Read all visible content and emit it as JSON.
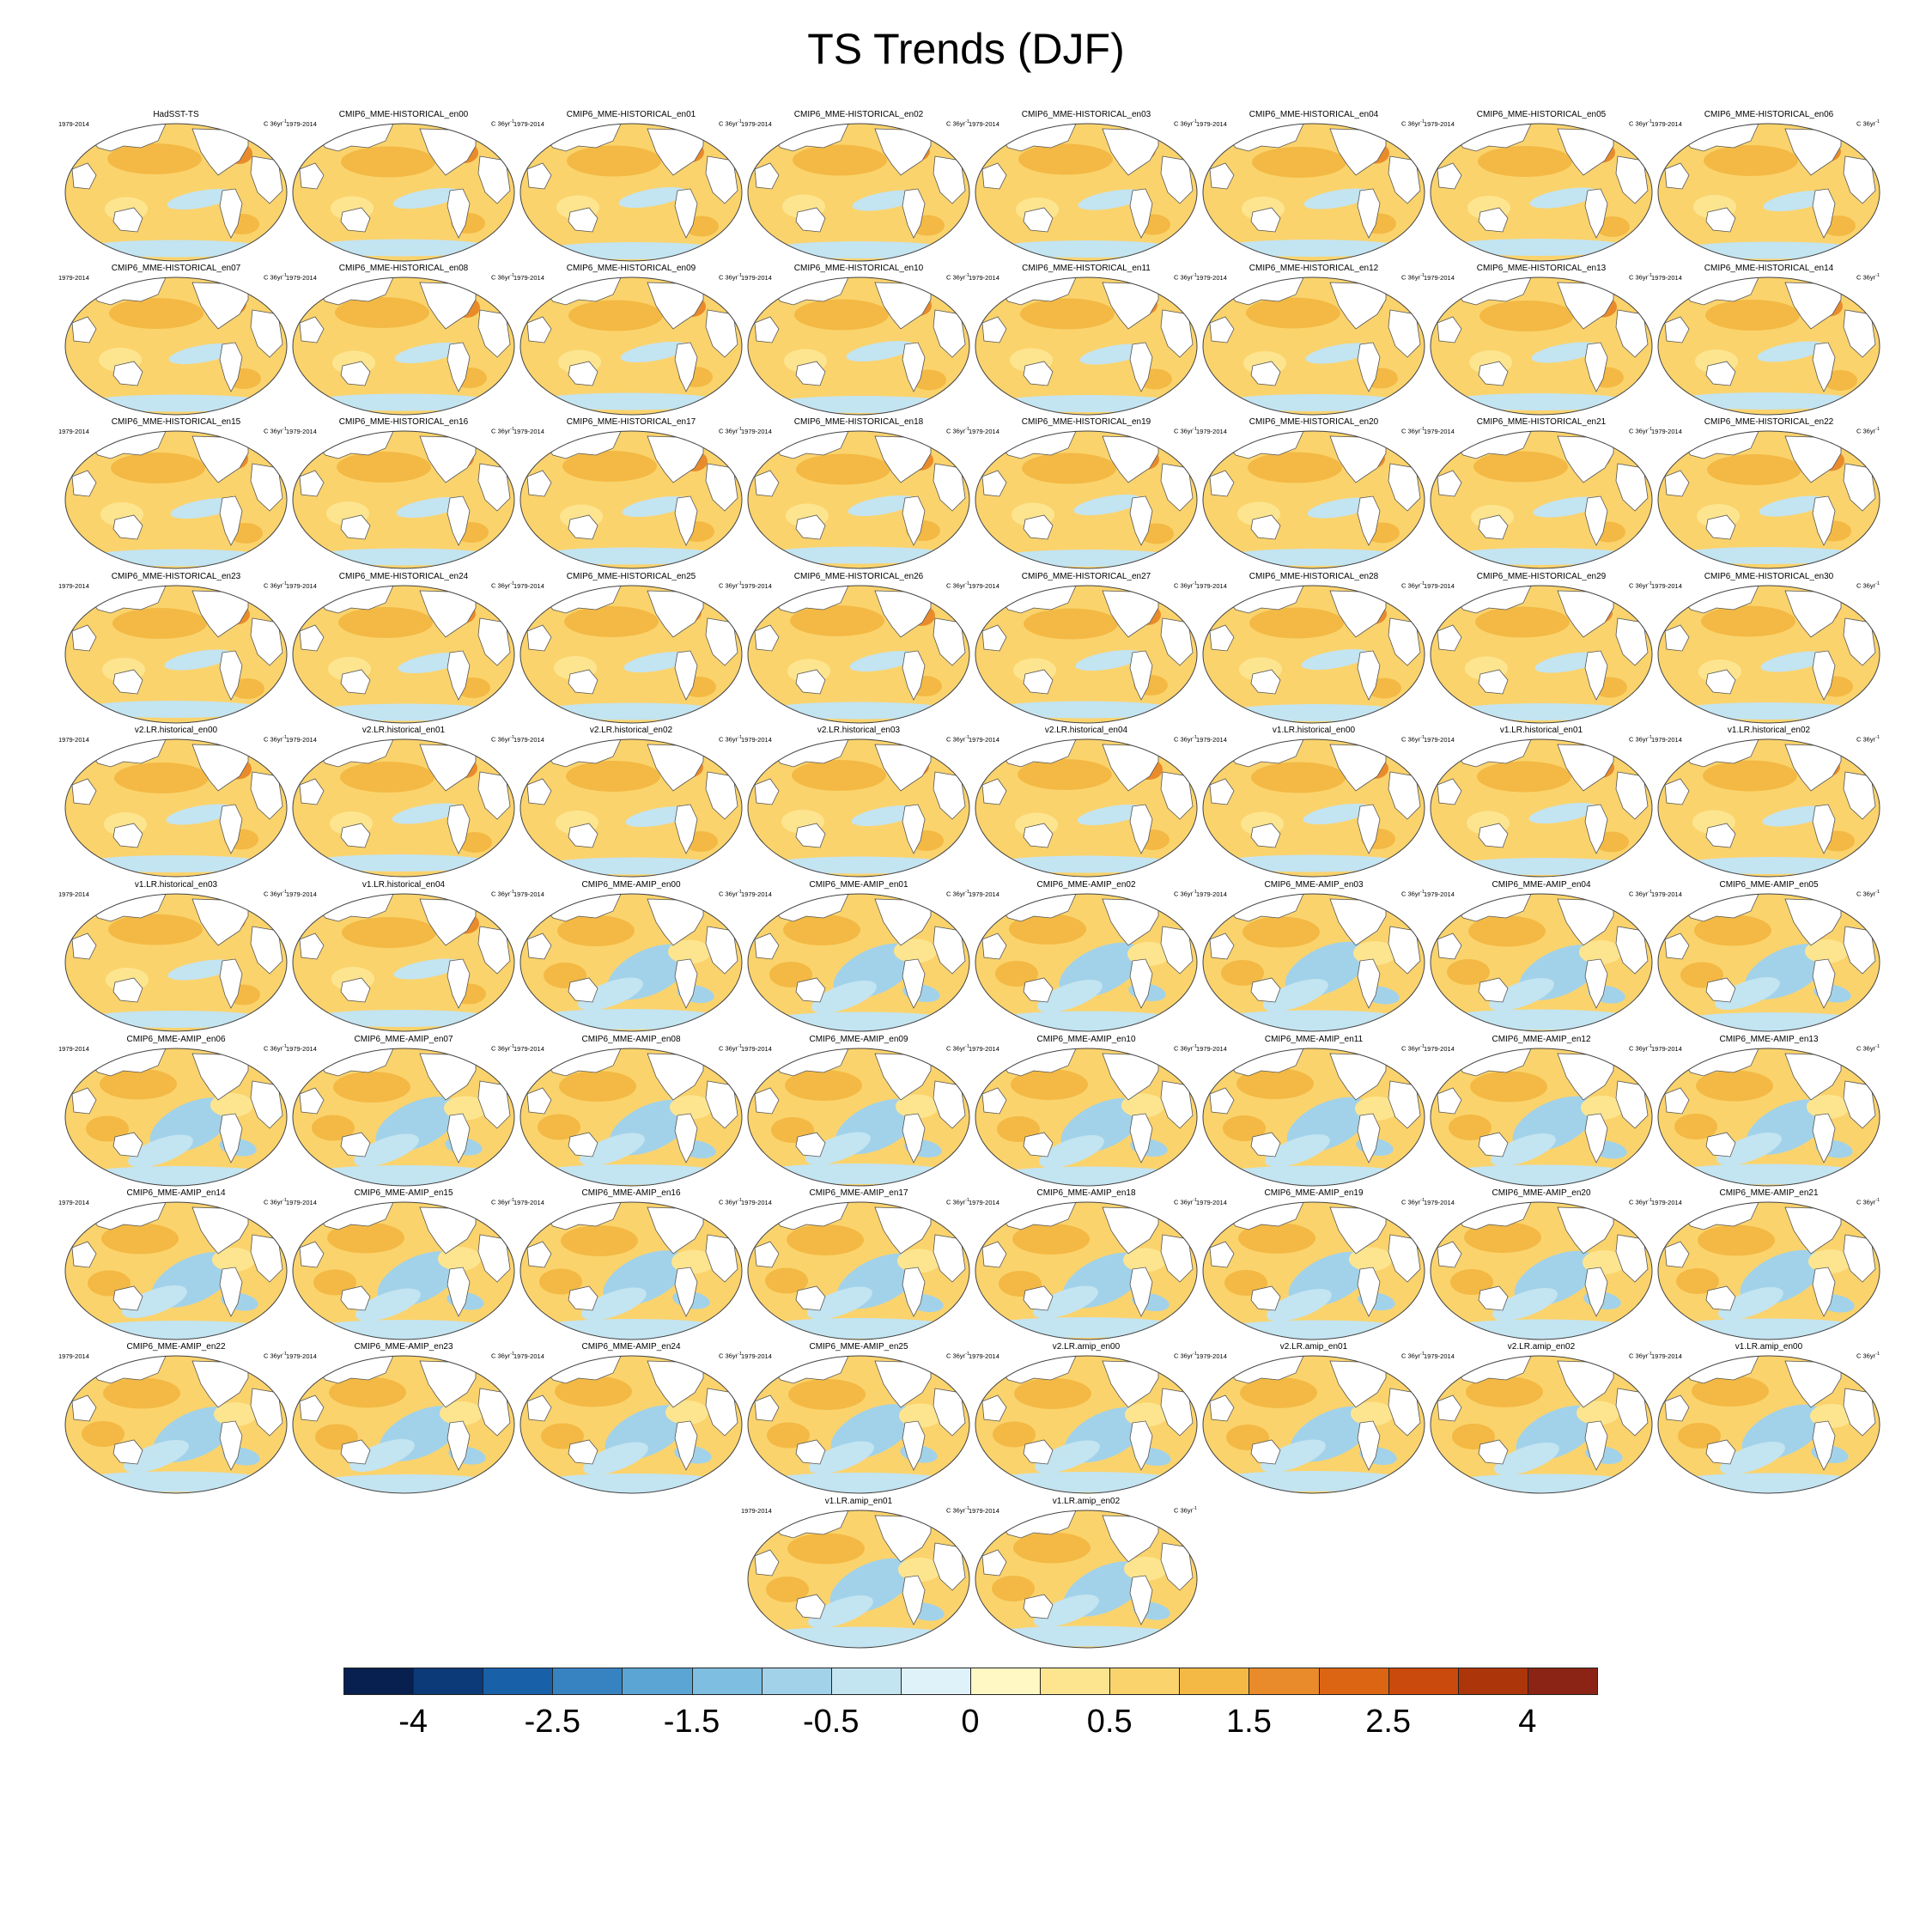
{
  "title": "TS Trends (DJF)",
  "period_label": "1979-2014",
  "units": {
    "base": "C 36yr",
    "exponent": "-1"
  },
  "panel_rows": [
    [
      "HadSST-TS",
      "CMIP6_MME-HISTORICAL_en00",
      "CMIP6_MME-HISTORICAL_en01",
      "CMIP6_MME-HISTORICAL_en02",
      "CMIP6_MME-HISTORICAL_en03",
      "CMIP6_MME-HISTORICAL_en04",
      "CMIP6_MME-HISTORICAL_en05",
      "CMIP6_MME-HISTORICAL_en06"
    ],
    [
      "CMIP6_MME-HISTORICAL_en07",
      "CMIP6_MME-HISTORICAL_en08",
      "CMIP6_MME-HISTORICAL_en09",
      "CMIP6_MME-HISTORICAL_en10",
      "CMIP6_MME-HISTORICAL_en11",
      "CMIP6_MME-HISTORICAL_en12",
      "CMIP6_MME-HISTORICAL_en13",
      "CMIP6_MME-HISTORICAL_en14"
    ],
    [
      "CMIP6_MME-HISTORICAL_en15",
      "CMIP6_MME-HISTORICAL_en16",
      "CMIP6_MME-HISTORICAL_en17",
      "CMIP6_MME-HISTORICAL_en18",
      "CMIP6_MME-HISTORICAL_en19",
      "CMIP6_MME-HISTORICAL_en20",
      "CMIP6_MME-HISTORICAL_en21",
      "CMIP6_MME-HISTORICAL_en22"
    ],
    [
      "CMIP6_MME-HISTORICAL_en23",
      "CMIP6_MME-HISTORICAL_en24",
      "CMIP6_MME-HISTORICAL_en25",
      "CMIP6_MME-HISTORICAL_en26",
      "CMIP6_MME-HISTORICAL_en27",
      "CMIP6_MME-HISTORICAL_en28",
      "CMIP6_MME-HISTORICAL_en29",
      "CMIP6_MME-HISTORICAL_en30"
    ],
    [
      "v2.LR.historical_en00",
      "v2.LR.historical_en01",
      "v2.LR.historical_en02",
      "v2.LR.historical_en03",
      "v2.LR.historical_en04",
      "v1.LR.historical_en00",
      "v1.LR.historical_en01",
      "v1.LR.historical_en02"
    ],
    [
      "v1.LR.historical_en03",
      "v1.LR.historical_en04",
      "CMIP6_MME-AMIP_en00",
      "CMIP6_MME-AMIP_en01",
      "CMIP6_MME-AMIP_en02",
      "CMIP6_MME-AMIP_en03",
      "CMIP6_MME-AMIP_en04",
      "CMIP6_MME-AMIP_en05"
    ],
    [
      "CMIP6_MME-AMIP_en06",
      "CMIP6_MME-AMIP_en07",
      "CMIP6_MME-AMIP_en08",
      "CMIP6_MME-AMIP_en09",
      "CMIP6_MME-AMIP_en10",
      "CMIP6_MME-AMIP_en11",
      "CMIP6_MME-AMIP_en12",
      "CMIP6_MME-AMIP_en13"
    ],
    [
      "CMIP6_MME-AMIP_en14",
      "CMIP6_MME-AMIP_en15",
      "CMIP6_MME-AMIP_en16",
      "CMIP6_MME-AMIP_en17",
      "CMIP6_MME-AMIP_en18",
      "CMIP6_MME-AMIP_en19",
      "CMIP6_MME-AMIP_en20",
      "CMIP6_MME-AMIP_en21"
    ],
    [
      "CMIP6_MME-AMIP_en22",
      "CMIP6_MME-AMIP_en23",
      "CMIP6_MME-AMIP_en24",
      "CMIP6_MME-AMIP_en25",
      "v2.LR.amip_en00",
      "v2.LR.amip_en01",
      "v2.LR.amip_en02",
      "v1.LR.amip_en00"
    ],
    [
      "v1.LR.amip_en01",
      "v1.LR.amip_en02"
    ]
  ],
  "colorbar": {
    "colors": [
      "#08204f",
      "#0c3a78",
      "#1860a8",
      "#3783c2",
      "#5aa5d3",
      "#7ebee0",
      "#a2d2e9",
      "#c3e4f1",
      "#e0f2f9",
      "#fff7c4",
      "#fde590",
      "#fbd36c",
      "#f3b944",
      "#e98b2b",
      "#dc6514",
      "#c94a0c",
      "#ad350a",
      "#8b2414"
    ],
    "tick_labels": [
      "-4",
      "-2.5",
      "-1.5",
      "-0.5",
      "0",
      "0.5",
      "1.5",
      "2.5",
      "4"
    ]
  }
}
